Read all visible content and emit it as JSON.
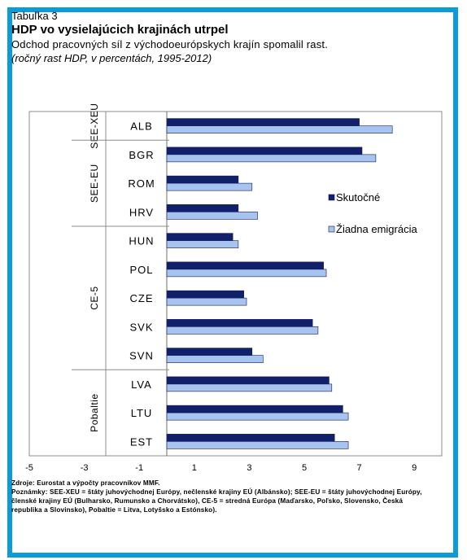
{
  "header": {
    "label": "Tabuľka 3",
    "title": "HDP vo vysielajúcich  krajinách utrpel",
    "subtitle": "Odchod pracovných síl z východoeurópskych krajín spomalil rast.",
    "units": "(ročný rast HDP, v percentách, 1995-2012)"
  },
  "chart_data": {
    "type": "bar",
    "orientation": "horizontal",
    "categories": [
      "ALB",
      "BGR",
      "ROM",
      "HRV",
      "HUN",
      "POL",
      "CZE",
      "SVK",
      "SVN",
      "LVA",
      "LTU",
      "EST"
    ],
    "groups": [
      {
        "name": "SEE-XEU",
        "categories": [
          "ALB"
        ]
      },
      {
        "name": "SEE-EU",
        "categories": [
          "BGR",
          "ROM",
          "HRV"
        ]
      },
      {
        "name": "CE-5",
        "categories": [
          "HUN",
          "POL",
          "CZE",
          "SVK",
          "SVN"
        ]
      },
      {
        "name": "Pobaltie",
        "categories": [
          "LVA",
          "LTU",
          "EST"
        ]
      }
    ],
    "series": [
      {
        "name": "Skutočné",
        "color": "#12206b",
        "values": [
          7.0,
          7.1,
          2.6,
          2.6,
          2.4,
          5.7,
          2.8,
          5.3,
          3.1,
          5.9,
          6.4,
          6.1
        ]
      },
      {
        "name": "Žiadna emigrácia",
        "color": "#a7c3ef",
        "values": [
          8.2,
          7.6,
          3.1,
          3.3,
          2.6,
          5.8,
          2.9,
          5.5,
          3.5,
          6.0,
          6.6,
          6.6
        ]
      }
    ],
    "xlim": [
      -5,
      10
    ],
    "xticks": [
      -5,
      -3,
      -1,
      1,
      3,
      5,
      7,
      9
    ],
    "grid": false,
    "legend_position": "right"
  },
  "notes": {
    "source": "Zdroje: Eurostat a výpočty pracovníkov MMF.",
    "note": "Poznámky: SEE-XEU = štáty juhovýchodnej Európy, nečlenské krajiny EÚ (Albánsko); SEE-EU = štáty juhovýchodnej Európy, členské krajiny EÚ (Bulharsko, Rumunsko a Chorvátsko), CE-5 = stredná Európa (Maďarsko, Poľsko, Slovensko, Česká republika a Slovinsko), Pobaltie = Litva, Lotyšsko a Estónsko)."
  }
}
